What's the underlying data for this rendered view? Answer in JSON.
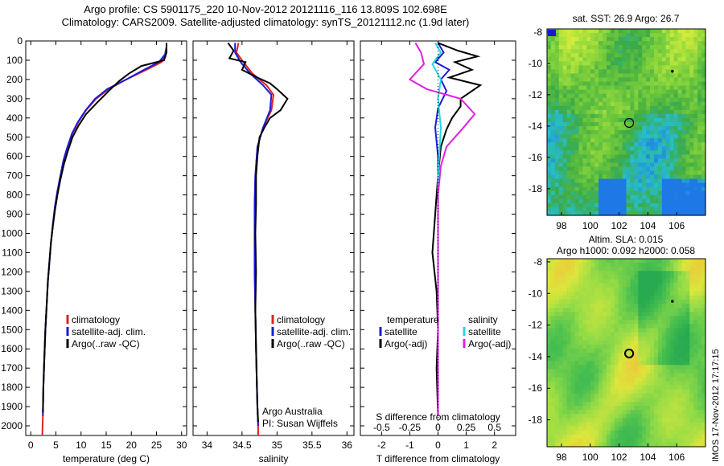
{
  "title": {
    "line1": "Argo profile: CS 5901175_220 10-Nov-2012 20121116_116 13.809S 102.698E",
    "line2": "Climatology: CARS2009. Satellite-adjusted climatology: synTS_20121112.nc (1.9d later)"
  },
  "timestamp": "IMOS 17-Nov-2012 17:17:15",
  "colors": {
    "climatology": "#e02020",
    "satellite": "#1a1adb",
    "argo": "#000000",
    "satellite_diff": "#22d8e8",
    "argo_adj_diff": "#e020e0"
  },
  "chart_data": [
    {
      "id": "temperature",
      "type": "line",
      "xlabel": "temperature (deg C)",
      "ylabel": "",
      "xlim": [
        -1,
        31
      ],
      "ylim": [
        2050,
        0
      ],
      "xticks": [
        0,
        5,
        10,
        15,
        20,
        25,
        30
      ],
      "yticks": [
        0,
        100,
        200,
        300,
        400,
        500,
        600,
        700,
        800,
        900,
        1000,
        1100,
        1200,
        1300,
        1400,
        1500,
        1600,
        1700,
        1800,
        1900,
        2000
      ],
      "legend": [
        "climatology",
        "satellite-adj. clim.",
        "Argo(..raw -QC)"
      ],
      "series": [
        {
          "name": "climatology",
          "color": "#e02020",
          "x": [
            27.0,
            26.8,
            26.0,
            23.0,
            19.0,
            15.5,
            13.0,
            11.0,
            9.5,
            8.3,
            7.3,
            6.5,
            5.9,
            5.3,
            4.8,
            4.4,
            4.0,
            3.7,
            3.4,
            3.2,
            2.9,
            2.7,
            2.5,
            2.4,
            2.3
          ],
          "y": [
            30,
            70,
            110,
            150,
            200,
            250,
            300,
            360,
            420,
            480,
            550,
            620,
            700,
            780,
            860,
            950,
            1050,
            1150,
            1250,
            1350,
            1500,
            1650,
            1800,
            1950,
            2050
          ]
        },
        {
          "name": "satellite-adj. clim.",
          "color": "#1a1adb",
          "x": [
            27.0,
            26.7,
            25.5,
            22.5,
            19.0,
            15.2,
            12.8,
            10.9,
            9.4,
            8.2,
            7.3,
            6.5,
            5.9,
            5.3,
            4.8,
            4.4,
            4.0,
            3.7,
            3.4,
            3.2,
            2.9,
            2.7,
            2.5,
            2.4
          ],
          "y": [
            30,
            70,
            110,
            150,
            200,
            250,
            300,
            360,
            420,
            480,
            550,
            620,
            700,
            780,
            860,
            950,
            1050,
            1150,
            1250,
            1350,
            1500,
            1650,
            1800,
            1950
          ]
        },
        {
          "name": "Argo(..raw -QC)",
          "color": "#000000",
          "x": [
            27.0,
            27.0,
            26.5,
            22.0,
            19.5,
            17.5,
            15.5,
            13.2,
            11.0,
            9.5,
            8.3,
            7.4,
            6.6,
            5.9,
            5.3,
            4.8,
            4.4,
            4.0,
            3.7,
            3.4,
            3.2,
            2.9,
            2.7,
            2.5,
            2.4
          ],
          "y": [
            10,
            60,
            100,
            130,
            170,
            210,
            260,
            320,
            380,
            440,
            500,
            570,
            640,
            720,
            800,
            880,
            960,
            1050,
            1150,
            1250,
            1350,
            1500,
            1650,
            1800,
            1930
          ]
        }
      ]
    },
    {
      "id": "salinity",
      "type": "line",
      "xlabel": "salinity",
      "ylabel": "",
      "xlim": [
        33.8,
        36.1
      ],
      "ylim": [
        2050,
        0
      ],
      "xticks": [
        34,
        34.5,
        35,
        35.5,
        36
      ],
      "legend": [
        "climatology",
        "satellite-adj. clim.",
        "Argo(..raw -QC)"
      ],
      "annotations": [
        "Argo Australia",
        "PI: Susan Wijffels"
      ],
      "series": [
        {
          "name": "climatology",
          "color": "#e02020",
          "x": [
            34.45,
            34.42,
            34.52,
            34.65,
            34.85,
            34.95,
            34.92,
            34.8,
            34.72,
            34.69,
            34.68,
            34.68,
            34.68,
            34.69,
            34.7,
            34.71,
            34.72,
            34.73,
            34.73
          ],
          "y": [
            10,
            60,
            110,
            170,
            230,
            280,
            360,
            450,
            550,
            700,
            850,
            1000,
            1200,
            1400,
            1600,
            1750,
            1900,
            2000,
            2050
          ]
        },
        {
          "name": "satellite-adj. clim.",
          "color": "#1a1adb",
          "x": [
            34.4,
            34.4,
            34.48,
            34.62,
            34.8,
            34.92,
            34.9,
            34.8,
            34.72,
            34.69,
            34.68,
            34.68,
            34.68,
            34.69,
            34.7,
            34.71,
            34.72,
            34.73
          ],
          "y": [
            10,
            60,
            110,
            170,
            230,
            280,
            360,
            450,
            550,
            700,
            850,
            1000,
            1200,
            1400,
            1600,
            1750,
            1900,
            2000
          ]
        },
        {
          "name": "Argo(..raw -QC)",
          "color": "#000000",
          "x": [
            34.3,
            34.38,
            34.32,
            34.55,
            34.5,
            34.72,
            34.9,
            35.0,
            35.15,
            35.05,
            34.9,
            34.82,
            34.75,
            34.72,
            34.7,
            34.7,
            34.69,
            34.7,
            34.69,
            34.7,
            34.71,
            34.72,
            34.73
          ],
          "y": [
            10,
            50,
            90,
            110,
            150,
            190,
            220,
            250,
            300,
            360,
            400,
            450,
            500,
            600,
            700,
            850,
            1000,
            1200,
            1400,
            1600,
            1750,
            1900,
            1980
          ]
        }
      ]
    },
    {
      "id": "difference",
      "type": "line",
      "xlabel": "T difference from climatology",
      "xlabel_top": "S difference from climatology",
      "xlim": [
        -2.75,
        2.75
      ],
      "ylim": [
        2050,
        0
      ],
      "xticks": [
        -2,
        -1,
        0,
        1,
        2
      ],
      "xticks_top": [
        "-0.5",
        "-0.25",
        "0",
        "0.25",
        "0.5"
      ],
      "xticks_top_pos": [
        -2,
        -1,
        0,
        1,
        2
      ],
      "legend_headers": [
        "temperature",
        "salinity"
      ],
      "legend": [
        "satellite",
        "Argo(-adj)",
        "satellite",
        "Argo(-adj)"
      ],
      "series": [
        {
          "name": "T satellite",
          "color": "#1a1adb",
          "x": [
            0.0,
            0.2,
            -0.1,
            0.4,
            0.1,
            0.3,
            0.0,
            -0.1,
            0.0,
            0.0,
            0.0,
            0.0,
            0.0,
            0.0
          ],
          "y": [
            10,
            60,
            110,
            150,
            200,
            260,
            350,
            450,
            600,
            800,
            1000,
            1300,
            1600,
            1950
          ]
        },
        {
          "name": "T Argo(-adj)",
          "color": "#000000",
          "x": [
            0.0,
            0.7,
            1.4,
            0.6,
            1.2,
            0.4,
            1.5,
            0.8,
            0.8,
            0.5,
            0.3,
            0.1,
            0.0,
            -0.1,
            -0.2,
            -0.05,
            0.0,
            -0.05,
            0.0
          ],
          "y": [
            10,
            50,
            80,
            110,
            150,
            190,
            230,
            300,
            340,
            400,
            460,
            550,
            700,
            900,
            1100,
            1300,
            1500,
            1700,
            1950
          ]
        },
        {
          "name": "S satellite",
          "color": "#22d8e8",
          "x": [
            -0.1,
            0.1,
            -0.2,
            0.1,
            0.0,
            0.1,
            0.0,
            0.0,
            0.0,
            0.0
          ],
          "y": [
            10,
            60,
            120,
            200,
            300,
            450,
            700,
            1000,
            1400,
            1950
          ]
        },
        {
          "name": "S Argo(-adj)",
          "color": "#e020e0",
          "x": [
            -0.8,
            -0.6,
            -0.5,
            -1.0,
            -0.4,
            0.8,
            1.3,
            0.9,
            0.3,
            0.1,
            0.0,
            0.0,
            0.0,
            0.0
          ],
          "y": [
            10,
            60,
            120,
            200,
            250,
            300,
            380,
            450,
            550,
            650,
            800,
            1100,
            1500,
            1950
          ]
        }
      ]
    },
    {
      "id": "sst_map",
      "type": "heatmap",
      "title": "sat. SST: 26.9 Argo: 26.7",
      "xlim": [
        97,
        108
      ],
      "ylim": [
        -19.7,
        -7.8
      ],
      "xticks": [
        98,
        100,
        102,
        104,
        106
      ],
      "yticks": [
        -8,
        -10,
        -12,
        -14,
        -16,
        -18
      ],
      "marker": {
        "lon": 102.7,
        "lat": -13.8
      },
      "point": {
        "lon": 105.7,
        "lat": -10.5
      }
    },
    {
      "id": "sla_map",
      "type": "heatmap",
      "title": "Altim. SLA: 0.015",
      "subtitle": "Argo h1000: 0.092 h2000: 0.058",
      "xlim": [
        97,
        108
      ],
      "ylim": [
        -19.7,
        -7.8
      ],
      "xticks": [
        98,
        100,
        102,
        104,
        106
      ],
      "yticks": [
        -8,
        -10,
        -12,
        -14,
        -16,
        -18
      ],
      "marker": {
        "lon": 102.7,
        "lat": -13.8
      },
      "point": {
        "lon": 105.7,
        "lat": -10.5
      }
    }
  ]
}
